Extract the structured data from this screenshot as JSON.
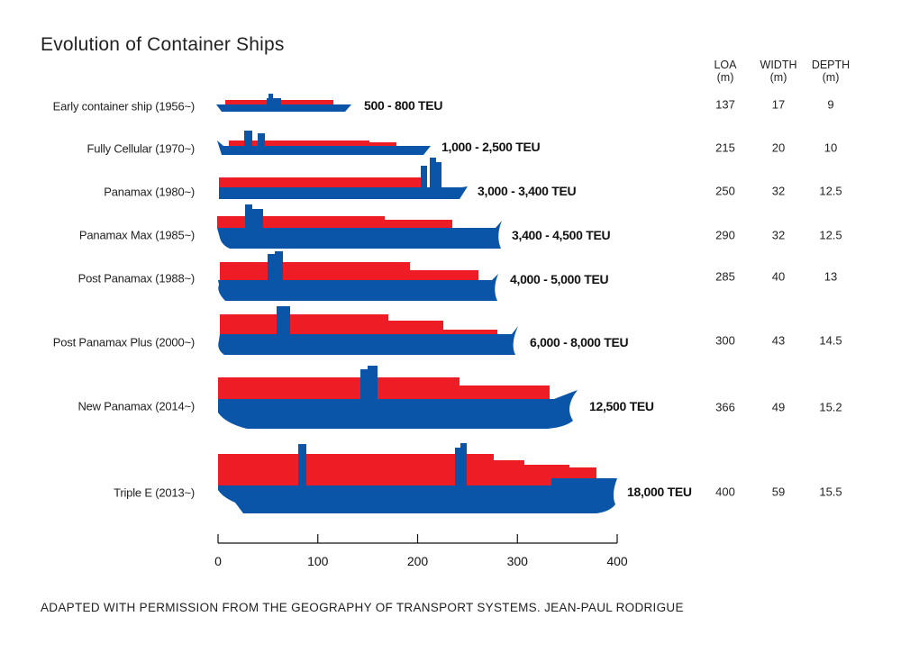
{
  "chart_data": {
    "type": "bar",
    "title": "Evolution of Container Ships",
    "xlim": [
      0,
      400
    ],
    "x_ticks": [
      "0",
      "100",
      "200",
      "300",
      "400"
    ],
    "columns": [
      {
        "label": "LOA",
        "unit": "(m)"
      },
      {
        "label": "WIDTH",
        "unit": "(m)"
      },
      {
        "label": "DEPTH",
        "unit": "(m)"
      }
    ],
    "categories": [
      "Early container ship (1956~)",
      "Fully Cellular (1970~)",
      "Panamax (1980~)",
      "Panamax Max (1985~)",
      "Post Panamax (1988~)",
      "Post Panamax Plus (2000~)",
      "New Panamax (2014~)",
      "Triple E (2013~)"
    ],
    "ships": [
      {
        "name": "Early container ship (1956~)",
        "capacity": "500 - 800 TEU",
        "loa": "137",
        "width": "17",
        "depth": "9"
      },
      {
        "name": "Fully Cellular (1970~)",
        "capacity": "1,000 - 2,500 TEU",
        "loa": "215",
        "width": "20",
        "depth": "10"
      },
      {
        "name": "Panamax (1980~)",
        "capacity": "3,000 - 3,400 TEU",
        "loa": "250",
        "width": "32",
        "depth": "12.5"
      },
      {
        "name": "Panamax Max (1985~)",
        "capacity": "3,400 - 4,500 TEU",
        "loa": "290",
        "width": "32",
        "depth": "12.5"
      },
      {
        "name": "Post Panamax (1988~)",
        "capacity": "4,000 - 5,000 TEU",
        "loa": "285",
        "width": "40",
        "depth": "13"
      },
      {
        "name": "Post Panamax Plus (2000~)",
        "capacity": "6,000 - 8,000 TEU",
        "loa": "300",
        "width": "43",
        "depth": "14.5"
      },
      {
        "name": "New Panamax (2014~)",
        "capacity": "12,500 TEU",
        "loa": "366",
        "width": "49",
        "depth": "15.2"
      },
      {
        "name": "Triple E (2013~)",
        "capacity": "18,000 TEU",
        "loa": "400",
        "width": "59",
        "depth": "15.5"
      }
    ],
    "colors": {
      "hull": "#0a55a8",
      "containers": "#ee1c25"
    }
  },
  "footer": "ADAPTED WITH PERMISSION FROM THE GEOGRAPHY OF TRANSPORT SYSTEMS. JEAN-PAUL RODRIGUE"
}
